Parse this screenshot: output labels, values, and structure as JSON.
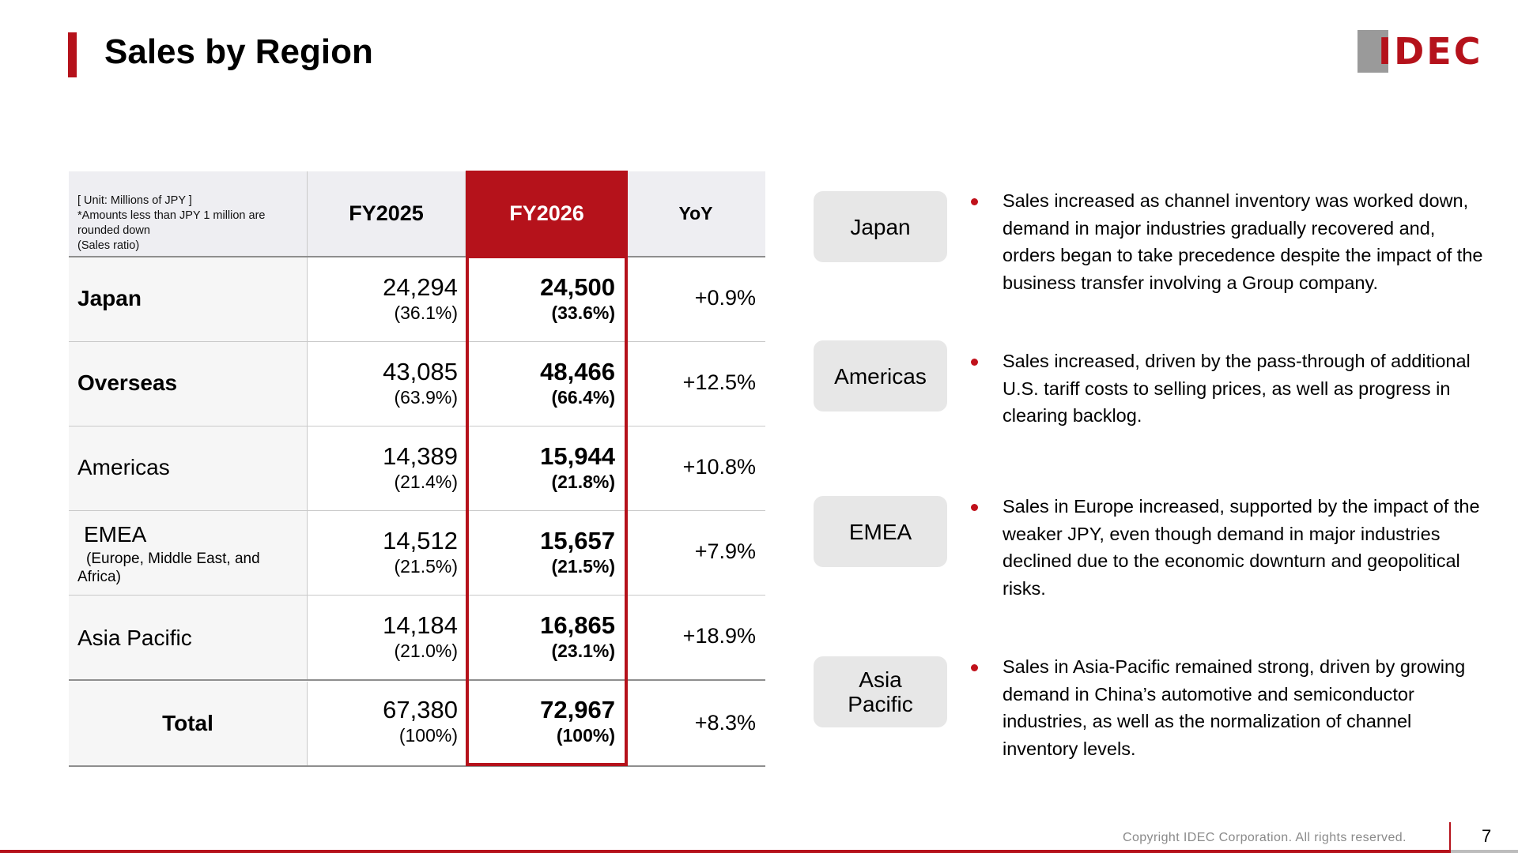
{
  "title": "Sales by Region",
  "logo_text": "IDEC",
  "table": {
    "header_note": [
      "[ Unit: Millions of JPY ]",
      "*Amounts less than JPY 1 million are",
      "rounded down",
      "(Sales ratio)"
    ],
    "col_fy2025": "FY2025",
    "col_fy2026": "FY2026",
    "col_yoy": "YoY",
    "rows": [
      {
        "label": "Japan",
        "fy2025": "24,294",
        "fy2025_pct": "(36.1%)",
        "fy2026": "24,500",
        "fy2026_pct": "(33.6%)",
        "yoy": "+0.9%"
      },
      {
        "label": "Overseas",
        "fy2025": "43,085",
        "fy2025_pct": "(63.9%)",
        "fy2026": "48,466",
        "fy2026_pct": "(66.4%)",
        "yoy": "+12.5%"
      },
      {
        "label": "Americas",
        "fy2025": "14,389",
        "fy2025_pct": "(21.4%)",
        "fy2026": "15,944",
        "fy2026_pct": "(21.8%)",
        "yoy": "+10.8%"
      },
      {
        "label": "EMEA",
        "sublabel_1": "(Europe, Middle East, and",
        "sublabel_2": "Africa)",
        "fy2025": "14,512",
        "fy2025_pct": "(21.5%)",
        "fy2026": "15,657",
        "fy2026_pct": "(21.5%)",
        "yoy": "+7.9%"
      },
      {
        "label": "Asia Pacific",
        "fy2025": "14,184",
        "fy2025_pct": "(21.0%)",
        "fy2026": "16,865",
        "fy2026_pct": "(23.1%)",
        "yoy": "+18.9%"
      },
      {
        "label": "Total",
        "fy2025": "67,380",
        "fy2025_pct": "(100%)",
        "fy2026": "72,967",
        "fy2026_pct": "(100%)",
        "yoy": "+8.3%"
      }
    ]
  },
  "regions": [
    {
      "name": "Japan",
      "text": "Sales increased as channel inventory was worked down, demand in major industries gradually recovered and, orders began to take precedence despite the impact of the business transfer involving a Group company."
    },
    {
      "name": "Americas",
      "text": "Sales increased, driven by the pass-through of additional U.S. tariff costs to selling prices, as well as progress in clearing backlog."
    },
    {
      "name": "EMEA",
      "text": "Sales in Europe increased, supported by the impact of the weaker JPY, even though demand in major industries declined due to the economic downturn and geopolitical risks."
    },
    {
      "name_1": "Asia",
      "name_2": "Pacific",
      "text": "Sales in Asia-Pacific remained strong, driven by growing demand in China’s automotive and semiconductor industries, as well as the normalization of channel inventory levels."
    }
  ],
  "footer": {
    "copyright": "Copyright IDEC Corporation. All rights reserved.",
    "page": "7"
  }
}
